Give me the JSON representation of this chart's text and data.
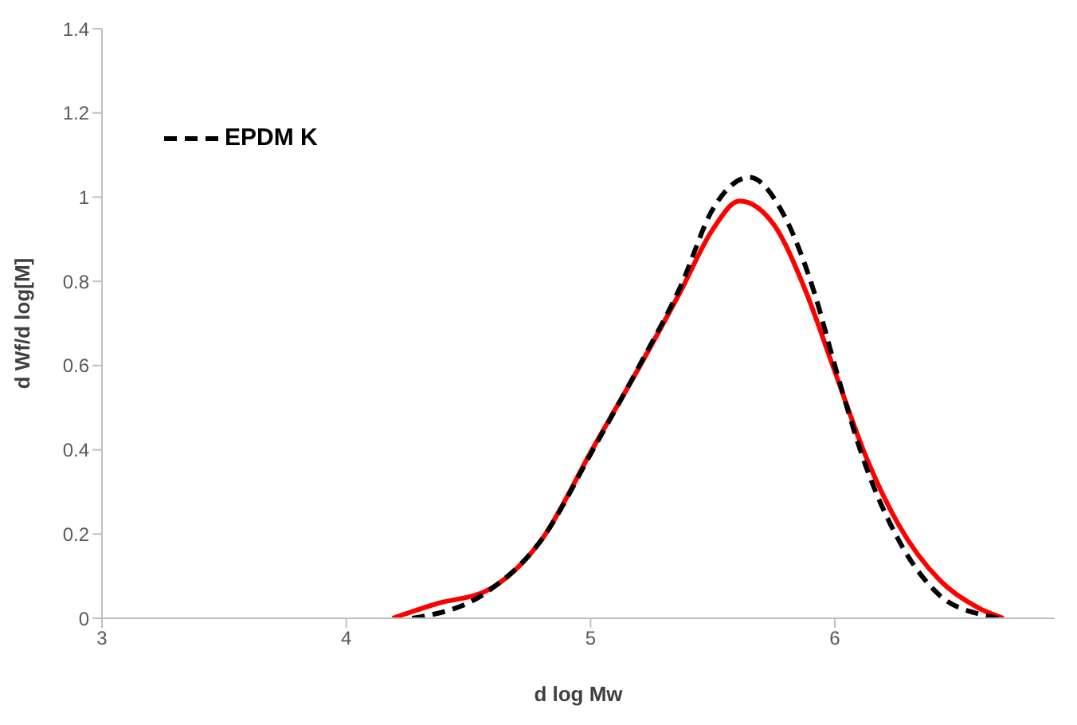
{
  "chart_data": {
    "type": "line",
    "xlabel": "d log Mw",
    "ylabel": "d Wf/d log[M]",
    "xlim": [
      3,
      6.9
    ],
    "xticks": [
      3,
      4,
      5,
      6
    ],
    "ylim": [
      0,
      1.4
    ],
    "yticks": [
      0,
      0.2,
      0.4,
      0.6,
      0.8,
      1,
      1.2,
      1.4
    ],
    "grid": false,
    "legend": "top left",
    "marker": "none",
    "series": [
      {
        "color": "#ff0000",
        "line_style": "solid",
        "x": [
          4.19,
          4.38,
          4.57,
          4.8,
          5.01,
          5.2,
          5.37,
          5.5,
          5.61,
          5.75,
          5.88,
          6,
          6.13,
          6.26,
          6.43,
          6.59,
          6.69
        ],
        "values": [
          0,
          0.036,
          0.064,
          0.187,
          0.404,
          0.597,
          0.778,
          0.923,
          0.991,
          0.935,
          0.778,
          0.586,
          0.38,
          0.223,
          0.09,
          0.024,
          0
        ]
      },
      {
        "name": "EPDM K",
        "color": "#000000",
        "line_style": "dashed",
        "x": [
          4.27,
          4.57,
          4.8,
          5.01,
          5.2,
          5.37,
          5.5,
          5.65,
          5.79,
          5.92,
          6,
          6.13,
          6.26,
          6.43,
          6.59,
          6.67
        ],
        "values": [
          0,
          0.06,
          0.187,
          0.4,
          0.6,
          0.79,
          0.971,
          1.047,
          0.959,
          0.766,
          0.6,
          0.356,
          0.187,
          0.054,
          0.01,
          0
        ]
      }
    ]
  }
}
